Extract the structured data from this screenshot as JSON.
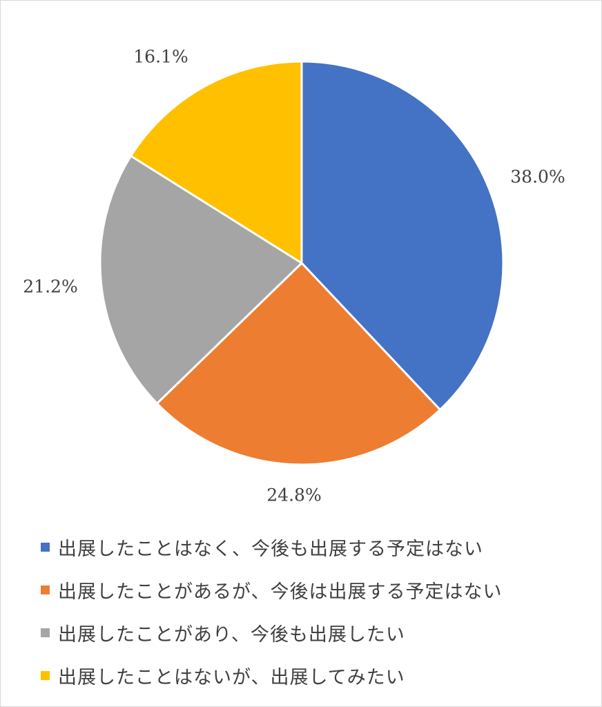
{
  "chart_data": {
    "type": "pie",
    "slices": [
      {
        "label": "出展したことはなく、今後も出展する予定はない",
        "value": 38.0,
        "value_label": "38.0%",
        "color": "#4472C4"
      },
      {
        "label": "出展したことがあるが、今後は出展する予定はない",
        "value": 24.8,
        "value_label": "24.8%",
        "color": "#ED7D31"
      },
      {
        "label": "出展したことがあり、今後も出展したい",
        "value": 21.2,
        "value_label": "21.2%",
        "color": "#A5A5A5"
      },
      {
        "label": "出展したことはないが、出展してみたい",
        "value": 16.1,
        "value_label": "16.1%",
        "color": "#FFC000"
      }
    ],
    "start_angle": "top",
    "direction": "clockwise",
    "legend_position": "bottom"
  }
}
